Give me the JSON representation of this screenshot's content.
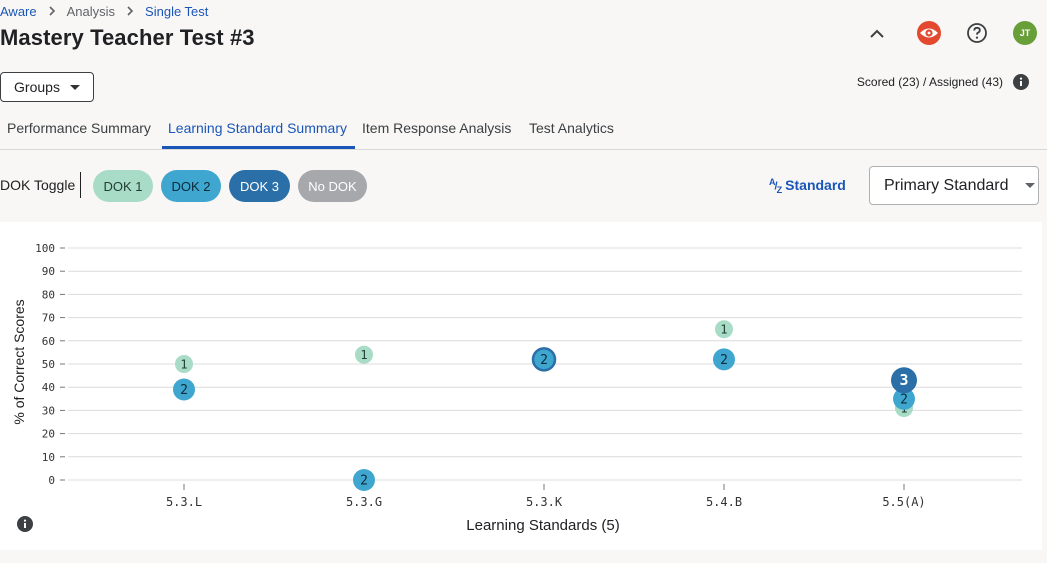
{
  "breadcrumb": {
    "items": [
      "Aware",
      "Analysis",
      "Single Test"
    ]
  },
  "page_title": "Mastery Teacher Test #3",
  "header_icons": {
    "avatar_initials": "JT",
    "colors": {
      "eye": "#e2492f",
      "avatar": "#689f38"
    }
  },
  "groups_button": {
    "label": "Groups"
  },
  "scored_text": "Scored (23) / Assigned (43)",
  "tabs": [
    {
      "label": "Performance Summary",
      "active": false
    },
    {
      "label": "Learning Standard Summary",
      "active": true
    },
    {
      "label": "Item Response Analysis",
      "active": false
    },
    {
      "label": "Test Analytics",
      "active": false
    }
  ],
  "dok_toggle": {
    "label": "DOK Toggle",
    "pills": [
      {
        "label": "DOK 1",
        "bg": "#a8dcc6",
        "fg": "#1f3d33"
      },
      {
        "label": "DOK 2",
        "bg": "#3fa7cf",
        "fg": "#0c2a3a"
      },
      {
        "label": "DOK 3",
        "bg": "#2a6fa8",
        "fg": "#ffffff"
      },
      {
        "label": "No DOK",
        "bg": "#a6a8ab",
        "fg": "#ffffff"
      }
    ]
  },
  "sort_button": {
    "label": "Standard",
    "icon": "A/Z"
  },
  "standard_select": {
    "value": "Primary Standard"
  },
  "chart_data": {
    "type": "scatter",
    "xlabel": "Learning Standards (5)",
    "ylabel": "% of Correct Scores",
    "ylim": [
      0,
      100
    ],
    "yticks": [
      0,
      10,
      20,
      30,
      40,
      50,
      60,
      70,
      80,
      90,
      100
    ],
    "categories": [
      "5.3.L",
      "5.3.G",
      "5.3.K",
      "5.4.B",
      "5.5(A)"
    ],
    "points": [
      {
        "category": "5.3.L",
        "dok": "1",
        "y": 50
      },
      {
        "category": "5.3.L",
        "dok": "2",
        "y": 39
      },
      {
        "category": "5.3.G",
        "dok": "1",
        "y": 54
      },
      {
        "category": "5.3.G",
        "dok": "2",
        "y": 0
      },
      {
        "category": "5.3.K",
        "dok": "2",
        "y": 52,
        "highlighted": true
      },
      {
        "category": "5.4.B",
        "dok": "1",
        "y": 65
      },
      {
        "category": "5.4.B",
        "dok": "2",
        "y": 52
      },
      {
        "category": "5.5(A)",
        "dok": "1",
        "y": 31
      },
      {
        "category": "5.5(A)",
        "dok": "2",
        "y": 35
      },
      {
        "category": "5.5(A)",
        "dok": "3",
        "y": 43
      }
    ],
    "dok_colors": {
      "1": "#a8dcc6",
      "2": "#3fa7cf",
      "3": "#2a6fa8"
    },
    "grid": true,
    "legend": "none"
  }
}
